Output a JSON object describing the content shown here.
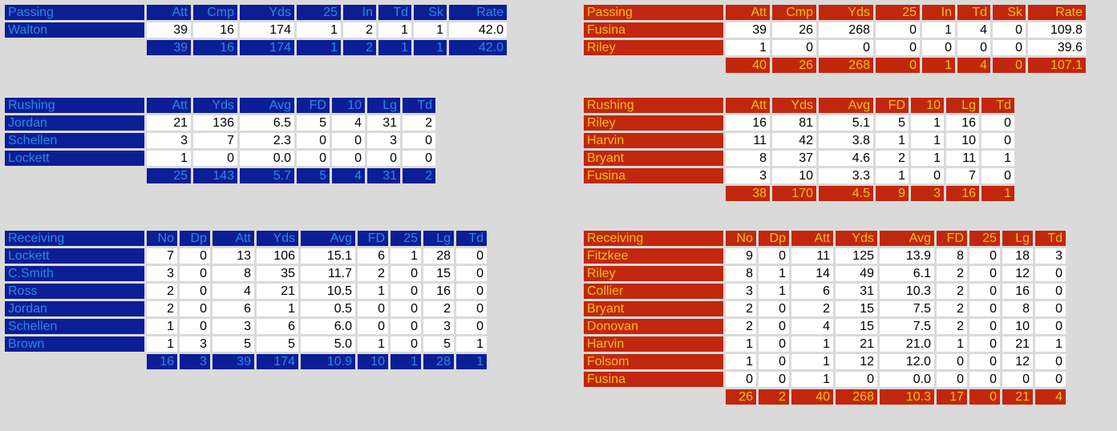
{
  "colors": {
    "home_fill": "#0b1e96",
    "home_text": "#2e86e6",
    "away_fill": "#c1270d",
    "away_text": "#f2bf1a",
    "cell_fill": "#ffffff",
    "background": "#dadada"
  },
  "left": {
    "passing": {
      "title": "Passing",
      "headers": [
        "Att",
        "Cmp",
        "Yds",
        "25",
        "In",
        "Td",
        "Sk",
        "Rate"
      ],
      "rows": [
        {
          "name": "Walton",
          "values": [
            "39",
            "16",
            "174",
            "1",
            "2",
            "1",
            "1",
            "42.0"
          ]
        }
      ],
      "total": [
        "39",
        "16",
        "174",
        "1",
        "2",
        "1",
        "1",
        "42.0"
      ]
    },
    "rushing": {
      "title": "Rushing",
      "headers": [
        "Att",
        "Yds",
        "Avg",
        "FD",
        "10",
        "Lg",
        "Td"
      ],
      "rows": [
        {
          "name": "Jordan",
          "values": [
            "21",
            "136",
            "6.5",
            "5",
            "4",
            "31",
            "2"
          ]
        },
        {
          "name": "Schellen",
          "values": [
            "3",
            "7",
            "2.3",
            "0",
            "0",
            "3",
            "0"
          ]
        },
        {
          "name": "Lockett",
          "values": [
            "1",
            "0",
            "0.0",
            "0",
            "0",
            "0",
            "0"
          ]
        }
      ],
      "total": [
        "25",
        "143",
        "5.7",
        "5",
        "4",
        "31",
        "2"
      ]
    },
    "receiving": {
      "title": "Receiving",
      "headers": [
        "No",
        "Dp",
        "Att",
        "Yds",
        "Avg",
        "FD",
        "25",
        "Lg",
        "Td"
      ],
      "rows": [
        {
          "name": "Lockett",
          "values": [
            "7",
            "0",
            "13",
            "106",
            "15.1",
            "6",
            "1",
            "28",
            "0"
          ]
        },
        {
          "name": "C.Smith",
          "values": [
            "3",
            "0",
            "8",
            "35",
            "11.7",
            "2",
            "0",
            "15",
            "0"
          ]
        },
        {
          "name": "Ross",
          "values": [
            "2",
            "0",
            "4",
            "21",
            "10.5",
            "1",
            "0",
            "16",
            "0"
          ]
        },
        {
          "name": "Jordan",
          "values": [
            "2",
            "0",
            "6",
            "1",
            "0.5",
            "0",
            "0",
            "2",
            "0"
          ]
        },
        {
          "name": "Schellen",
          "values": [
            "1",
            "0",
            "3",
            "6",
            "6.0",
            "0",
            "0",
            "3",
            "0"
          ]
        },
        {
          "name": "Brown",
          "values": [
            "1",
            "3",
            "5",
            "5",
            "5.0",
            "1",
            "0",
            "5",
            "1"
          ]
        }
      ],
      "total": [
        "16",
        "3",
        "39",
        "174",
        "10.9",
        "10",
        "1",
        "28",
        "1"
      ]
    }
  },
  "right": {
    "passing": {
      "title": "Passing",
      "headers": [
        "Att",
        "Cmp",
        "Yds",
        "25",
        "In",
        "Td",
        "Sk",
        "Rate"
      ],
      "rows": [
        {
          "name": "Fusina",
          "values": [
            "39",
            "26",
            "268",
            "0",
            "1",
            "4",
            "0",
            "109.8"
          ]
        },
        {
          "name": "Riley",
          "values": [
            "1",
            "0",
            "0",
            "0",
            "0",
            "0",
            "0",
            "39.6"
          ]
        }
      ],
      "total": [
        "40",
        "26",
        "268",
        "0",
        "1",
        "4",
        "0",
        "107.1"
      ]
    },
    "rushing": {
      "title": "Rushing",
      "headers": [
        "Att",
        "Yds",
        "Avg",
        "FD",
        "10",
        "Lg",
        "Td"
      ],
      "rows": [
        {
          "name": "Riley",
          "values": [
            "16",
            "81",
            "5.1",
            "5",
            "1",
            "16",
            "0"
          ]
        },
        {
          "name": "Harvin",
          "values": [
            "11",
            "42",
            "3.8",
            "1",
            "1",
            "10",
            "0"
          ]
        },
        {
          "name": "Bryant",
          "values": [
            "8",
            "37",
            "4.6",
            "2",
            "1",
            "11",
            "1"
          ]
        },
        {
          "name": "Fusina",
          "values": [
            "3",
            "10",
            "3.3",
            "1",
            "0",
            "7",
            "0"
          ]
        }
      ],
      "total": [
        "38",
        "170",
        "4.5",
        "9",
        "3",
        "16",
        "1"
      ]
    },
    "receiving": {
      "title": "Receiving",
      "headers": [
        "No",
        "Dp",
        "Att",
        "Yds",
        "Avg",
        "FD",
        "25",
        "Lg",
        "Td"
      ],
      "rows": [
        {
          "name": "Fitzkee",
          "values": [
            "9",
            "0",
            "11",
            "125",
            "13.9",
            "8",
            "0",
            "18",
            "3"
          ]
        },
        {
          "name": "Riley",
          "values": [
            "8",
            "1",
            "14",
            "49",
            "6.1",
            "2",
            "0",
            "12",
            "0"
          ]
        },
        {
          "name": "Collier",
          "values": [
            "3",
            "1",
            "6",
            "31",
            "10.3",
            "2",
            "0",
            "16",
            "0"
          ]
        },
        {
          "name": "Bryant",
          "values": [
            "2",
            "0",
            "2",
            "15",
            "7.5",
            "2",
            "0",
            "8",
            "0"
          ]
        },
        {
          "name": "Donovan",
          "values": [
            "2",
            "0",
            "4",
            "15",
            "7.5",
            "2",
            "0",
            "10",
            "0"
          ]
        },
        {
          "name": "Harvin",
          "values": [
            "1",
            "0",
            "1",
            "21",
            "21.0",
            "1",
            "0",
            "21",
            "1"
          ]
        },
        {
          "name": "Folsom",
          "values": [
            "1",
            "0",
            "1",
            "12",
            "12.0",
            "0",
            "0",
            "12",
            "0"
          ]
        },
        {
          "name": "Fusina",
          "values": [
            "0",
            "0",
            "1",
            "0",
            "0.0",
            "0",
            "0",
            "0",
            "0"
          ]
        }
      ],
      "total": [
        "26",
        "2",
        "40",
        "268",
        "10.3",
        "17",
        "0",
        "21",
        "4"
      ]
    }
  }
}
